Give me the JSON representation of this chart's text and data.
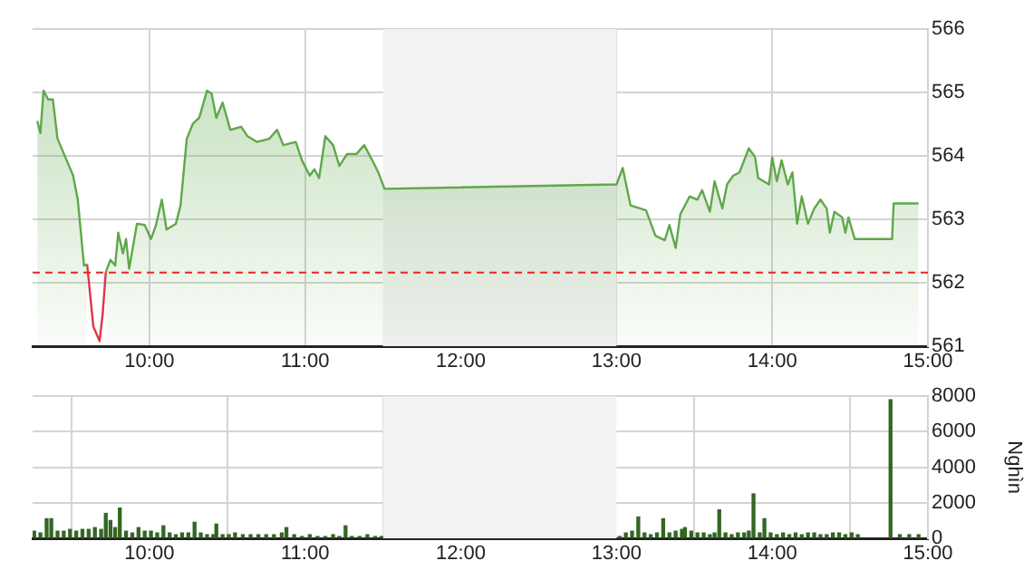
{
  "chart_data": [
    {
      "type": "area",
      "xlim": [
        9.25,
        15
      ],
      "xticks": [
        {
          "value": 10,
          "label": "10:00"
        },
        {
          "value": 11,
          "label": "11:00"
        },
        {
          "value": 12,
          "label": "12:00"
        },
        {
          "value": 13,
          "label": "13:00"
        },
        {
          "value": 14,
          "label": "14:00"
        },
        {
          "value": 15,
          "label": "15:00"
        }
      ],
      "ylim": [
        561,
        566
      ],
      "yticks": [
        561,
        562,
        563,
        564,
        565,
        566
      ],
      "grid": true,
      "legend": false,
      "ref_lines": [
        {
          "axis": "y",
          "value": 562.16,
          "color": "#ee2222",
          "line_style": "dashed"
        }
      ],
      "bands": [
        {
          "axis": "x",
          "from": 11.5,
          "to": 13,
          "color": "#f2f2f2"
        }
      ],
      "series": [
        {
          "color": "#5fa84a",
          "x": [
            9.28,
            9.3,
            9.32,
            9.35,
            9.38,
            9.41,
            9.46,
            9.51,
            9.54,
            9.58,
            9.6,
            9.64,
            9.68,
            9.7,
            9.72,
            9.75,
            9.78,
            9.8,
            9.83,
            9.85,
            9.87,
            9.92,
            9.97,
            10.01,
            10.04,
            10.08,
            10.11,
            10.17,
            10.2,
            10.24,
            10.28,
            10.32,
            10.37,
            10.4,
            10.43,
            10.47,
            10.52,
            10.59,
            10.63,
            10.69,
            10.77,
            10.82,
            10.86,
            10.94,
            10.98,
            11.03,
            11.06,
            11.09,
            11.13,
            11.18,
            11.22,
            11.27,
            11.33,
            11.38,
            11.44,
            11.47,
            11.51,
            13.0,
            13.04,
            13.09,
            13.19,
            13.25,
            13.31,
            13.34,
            13.38,
            13.41,
            13.47,
            13.52,
            13.55,
            13.6,
            13.63,
            13.68,
            13.71,
            13.75,
            13.79,
            13.85,
            13.89,
            13.91,
            13.98,
            14.0,
            14.03,
            14.06,
            14.1,
            14.13,
            14.16,
            14.19,
            14.23,
            14.27,
            14.31,
            14.35,
            14.37,
            14.4,
            14.45,
            14.47,
            14.49,
            14.53,
            14.77,
            14.78,
            14.94
          ],
          "values": [
            564.55,
            564.36,
            565.03,
            564.89,
            564.89,
            564.27,
            563.98,
            563.69,
            563.31,
            562.27,
            562.29,
            null,
            null,
            null,
            562.17,
            562.36,
            562.27,
            562.79,
            562.46,
            562.69,
            562.22,
            562.93,
            562.91,
            562.69,
            562.89,
            563.31,
            562.84,
            562.93,
            563.22,
            564.27,
            564.51,
            564.6,
            565.03,
            564.98,
            564.6,
            564.84,
            564.41,
            564.46,
            564.31,
            564.22,
            564.27,
            564.41,
            564.17,
            564.22,
            563.93,
            563.69,
            563.79,
            563.65,
            564.31,
            564.17,
            563.84,
            564.03,
            564.03,
            564.17,
            563.89,
            563.74,
            563.48,
            563.55,
            563.81,
            563.22,
            563.14,
            562.74,
            562.67,
            562.91,
            562.55,
            563.08,
            563.36,
            563.31,
            563.46,
            563.12,
            563.6,
            563.17,
            563.55,
            563.69,
            563.74,
            564.12,
            563.98,
            563.65,
            563.55,
            563.98,
            563.6,
            563.93,
            563.55,
            563.74,
            562.93,
            563.36,
            562.93,
            563.17,
            563.31,
            563.17,
            562.79,
            563.12,
            563.03,
            562.79,
            563.03,
            562.69,
            562.69,
            563.25,
            563.25
          ]
        },
        {
          "type": "line",
          "color": "#e0344a",
          "x": [
            9.6,
            9.64,
            9.68,
            9.7,
            9.72
          ],
          "values": [
            562.29,
            561.31,
            561.08,
            561.51,
            562.17
          ]
        }
      ]
    },
    {
      "type": "bar",
      "ylabel": "Nghìn",
      "color": "#336622",
      "xlim": [
        9.25,
        15
      ],
      "xticks": [
        {
          "value": 10,
          "label": "10:00"
        },
        {
          "value": 11,
          "label": "11:00"
        },
        {
          "value": 12,
          "label": "12:00"
        },
        {
          "value": 13,
          "label": "13:00"
        },
        {
          "value": 14,
          "label": "14:00"
        },
        {
          "value": 15,
          "label": "15:00"
        }
      ],
      "ylim": [
        0,
        8000
      ],
      "yticks": [
        0,
        2000,
        4000,
        6000,
        8000
      ],
      "grid": true,
      "legend": false,
      "bands": [
        {
          "axis": "x",
          "from": 11.5,
          "to": 13,
          "color": "#f2f2f2"
        }
      ],
      "x": [
        9.26,
        9.3,
        9.34,
        9.37,
        9.41,
        9.45,
        9.49,
        9.53,
        9.57,
        9.61,
        9.65,
        9.69,
        9.72,
        9.75,
        9.78,
        9.81,
        9.85,
        9.89,
        9.93,
        9.97,
        10.01,
        10.05,
        10.09,
        10.13,
        10.17,
        10.21,
        10.25,
        10.29,
        10.33,
        10.37,
        10.41,
        10.43,
        10.47,
        10.51,
        10.55,
        10.6,
        10.65,
        10.7,
        10.75,
        10.8,
        10.85,
        10.88,
        10.93,
        10.98,
        11.03,
        11.08,
        11.13,
        11.18,
        11.22,
        11.26,
        11.3,
        11.35,
        11.4,
        11.45,
        11.49,
        13.02,
        13.06,
        13.1,
        13.14,
        13.18,
        13.22,
        13.26,
        13.3,
        13.34,
        13.38,
        13.42,
        13.44,
        13.48,
        13.52,
        13.56,
        13.6,
        13.63,
        13.66,
        13.7,
        13.74,
        13.78,
        13.82,
        13.85,
        13.88,
        13.92,
        13.95,
        13.99,
        14.03,
        14.07,
        14.11,
        14.15,
        14.19,
        14.23,
        14.27,
        14.31,
        14.35,
        14.39,
        14.43,
        14.47,
        14.51,
        14.55,
        14.76,
        14.82,
        14.88,
        14.94
      ],
      "values": [
        400,
        300,
        1100,
        1100,
        400,
        400,
        500,
        400,
        500,
        500,
        600,
        500,
        1400,
        1000,
        600,
        1700,
        400,
        300,
        600,
        400,
        400,
        300,
        700,
        300,
        200,
        300,
        300,
        900,
        300,
        200,
        200,
        800,
        200,
        200,
        300,
        200,
        200,
        200,
        200,
        200,
        300,
        600,
        200,
        100,
        200,
        100,
        100,
        200,
        100,
        700,
        100,
        100,
        200,
        100,
        100,
        100,
        300,
        400,
        1200,
        300,
        200,
        300,
        1100,
        300,
        400,
        500,
        600,
        400,
        300,
        300,
        200,
        300,
        1600,
        300,
        200,
        300,
        300,
        400,
        2500,
        300,
        1100,
        300,
        200,
        300,
        200,
        300,
        200,
        300,
        300,
        200,
        200,
        300,
        300,
        200,
        300,
        200,
        7800,
        200,
        200,
        200
      ]
    }
  ]
}
